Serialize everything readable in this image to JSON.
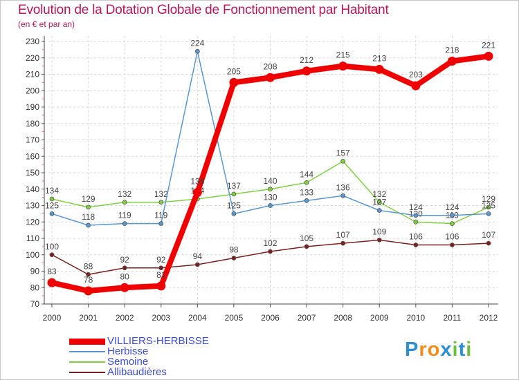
{
  "header": {
    "title": "Evolution de la Dotation Globale de Fonctionnement par Habitant",
    "subtitle": "(en € et par an)"
  },
  "chart_data": {
    "type": "line",
    "categories": [
      "2000",
      "2001",
      "2002",
      "2003",
      "2004",
      "2005",
      "2006",
      "2007",
      "2008",
      "2009",
      "2010",
      "2011",
      "2012"
    ],
    "ylim": [
      70,
      230
    ],
    "yticks": [
      70,
      80,
      90,
      100,
      110,
      120,
      130,
      140,
      150,
      160,
      170,
      180,
      190,
      200,
      210,
      220,
      230
    ],
    "grid": true,
    "series": [
      {
        "name": "Allibaudières",
        "color": "#7a1e1e",
        "values": [
          100,
          88,
          92,
          92,
          94,
          98,
          102,
          105,
          107,
          109,
          106,
          106,
          107
        ]
      },
      {
        "name": "Semoine",
        "color": "#80cf40",
        "values": [
          134,
          129,
          132,
          132,
          134,
          137,
          140,
          144,
          157,
          132,
          120,
          119,
          129
        ]
      },
      {
        "name": "Herbisse",
        "color": "#5a96cf",
        "values": [
          125,
          118,
          119,
          119,
          224,
          125,
          130,
          133,
          136,
          127,
          124,
          124,
          125
        ]
      },
      {
        "name": "VILLIERS-HERBISSE",
        "color": "#ee0000",
        "values": [
          83,
          78,
          80,
          81,
          138,
          205,
          208,
          212,
          215,
          213,
          203,
          218,
          221
        ]
      }
    ]
  },
  "legend": {
    "items": [
      {
        "name": "VILLIERS-HERBISSE",
        "color": "#ee0000"
      },
      {
        "name": "Herbisse",
        "color": "#5a96cf"
      },
      {
        "name": "Semoine",
        "color": "#80cf40"
      },
      {
        "name": "Allibaudières",
        "color": "#7a1e1e"
      }
    ]
  },
  "logo": {
    "letters": [
      {
        "char": "P",
        "color": "#2d8fd5"
      },
      {
        "char": "r",
        "color": "#f28c1c"
      },
      {
        "char": "o",
        "color": "#f28c1c"
      },
      {
        "char": "x",
        "color": "#2d8fd5"
      },
      {
        "char": "i",
        "color": "#6cbf3a"
      },
      {
        "char": "t",
        "color": "#2d8fd5"
      },
      {
        "char": "i",
        "color": "#6cbf3a"
      }
    ]
  }
}
